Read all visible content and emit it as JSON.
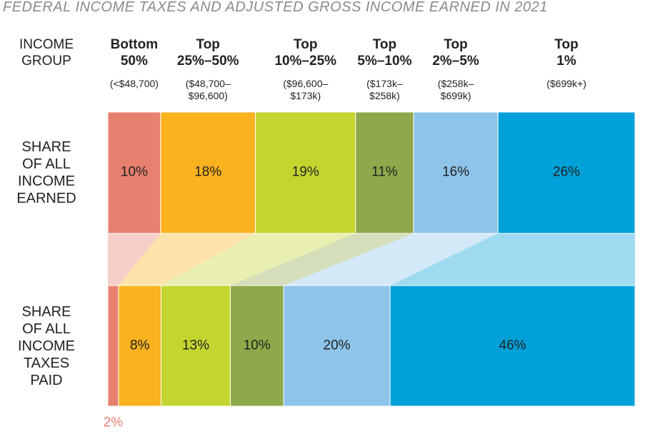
{
  "chart_data": {
    "type": "bar",
    "title": "FEDERAL INCOME TAXES AND ADJUSTED GROSS INCOME EARNED IN 2021",
    "category_header": "INCOME\nGROUP",
    "categories": [
      "Bottom\n50%",
      "Top\n25%–50%",
      "Top\n10%–25%",
      "Top\n5%–10%",
      "Top\n2%–5%",
      "Top\n1%"
    ],
    "category_ranges": [
      "(<$48,700)",
      "($48,700–\n$96,600)",
      "($96,600–\n$173k)",
      "($173k–\n$258k)",
      "($258k–\n$699k)",
      "($699k+)"
    ],
    "colors": [
      "#e8806f",
      "#fbb21f",
      "#c3d52f",
      "#8fa84a",
      "#8ec4ea",
      "#00a1d9"
    ],
    "series": [
      {
        "name": "SHARE\nOF ALL\nINCOME\nEARNED",
        "values": [
          10,
          18,
          19,
          11,
          16,
          26
        ],
        "value_labels": [
          "10%",
          "18%",
          "19%",
          "11%",
          "16%",
          "26%"
        ]
      },
      {
        "name": "SHARE\nOF ALL\nINCOME\nTAXES\nPAID",
        "values": [
          2,
          8,
          13,
          10,
          20,
          46
        ],
        "value_labels": [
          "2%",
          "8%",
          "13%",
          "10%",
          "20%",
          "46%"
        ]
      }
    ]
  }
}
